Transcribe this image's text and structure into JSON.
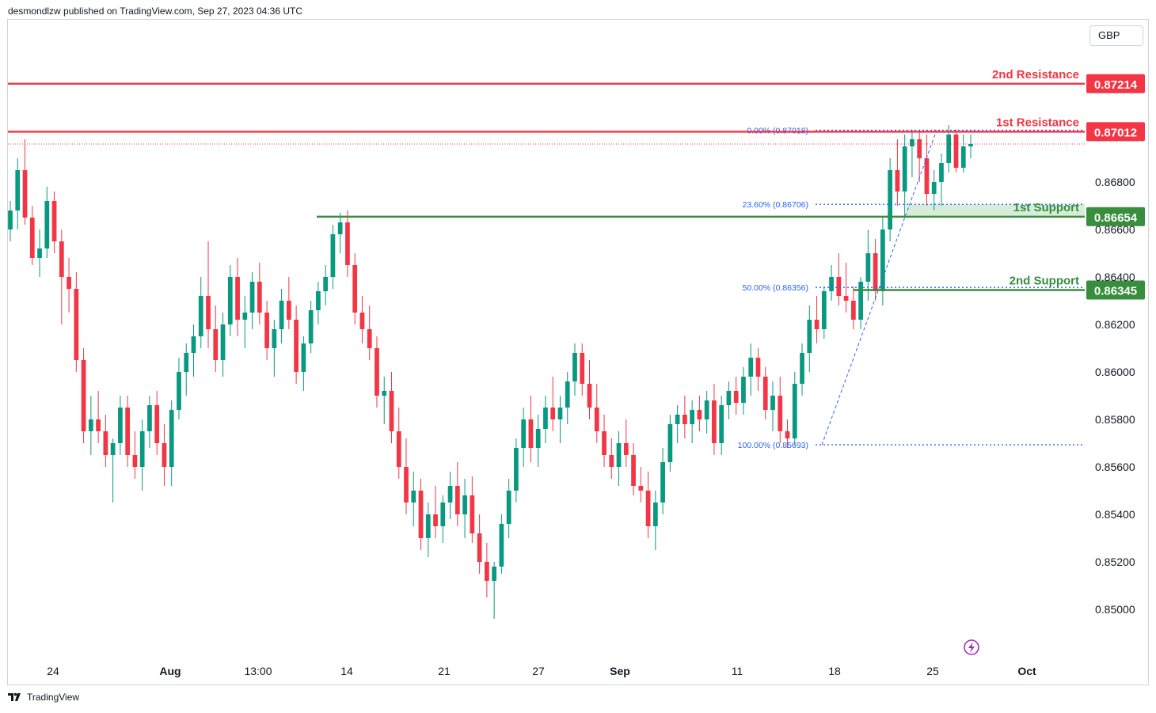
{
  "header": {
    "publisher": "desmondlzw published on TradingView.com, Sep 27, 2023 04:36 UTC"
  },
  "currency": "GBP",
  "footer": {
    "brand": "TradingView",
    "logo_icon": "tradingview-logo-icon"
  },
  "colors": {
    "up": "#089981",
    "down": "#f23645",
    "resistance": "#f23645",
    "support": "#388e3c",
    "fib": "#2962ff",
    "fib_text": "#2962ff",
    "purple": "#9c27b0",
    "support_zone": "#c8e6c9"
  },
  "chart_data": {
    "type": "candlestick",
    "symbol_currency": "GBP",
    "y_axis": {
      "ylim": [
        0.8492,
        0.8736
      ],
      "ticks": [
        "0.85000",
        "0.85200",
        "0.85400",
        "0.85600",
        "0.85800",
        "0.86000",
        "0.86200",
        "0.86400",
        "0.86600",
        "0.86800"
      ],
      "tick_values": [
        0.85,
        0.852,
        0.854,
        0.856,
        0.858,
        0.86,
        0.862,
        0.864,
        0.866,
        0.868
      ]
    },
    "x_axis": {
      "labels": [
        "24",
        "Aug",
        "13:00",
        "14",
        "21",
        "27",
        "Sep",
        "11",
        "18",
        "25",
        "Oct"
      ],
      "bold_labels": [
        "Aug",
        "Sep",
        "Oct"
      ]
    },
    "levels": [
      {
        "name": "2nd Resistance",
        "value": 0.87214,
        "label": "0.87214",
        "kind": "resistance"
      },
      {
        "name": "1st Resistance",
        "value": 0.87012,
        "label": "0.87012",
        "kind": "resistance"
      },
      {
        "name": "1st Support",
        "value": 0.86654,
        "label": "0.86654",
        "kind": "support"
      },
      {
        "name": "2nd Support",
        "value": 0.86345,
        "label": "0.86345",
        "kind": "support"
      }
    ],
    "fibonacci": [
      {
        "label": "0.00% (0.87018)",
        "value": 0.87018
      },
      {
        "label": "23.60% (0.86706)",
        "value": 0.86706
      },
      {
        "label": "50.00% (0.86356)",
        "value": 0.86356
      },
      {
        "label": "100.00% (0.85693)",
        "value": 0.85693
      }
    ],
    "ohlc": [
      [
        0.866,
        0.8672,
        0.8655,
        0.8668
      ],
      [
        0.8668,
        0.869,
        0.866,
        0.8685
      ],
      [
        0.8685,
        0.8698,
        0.8662,
        0.8665
      ],
      [
        0.8665,
        0.867,
        0.8645,
        0.8648
      ],
      [
        0.8648,
        0.866,
        0.864,
        0.8652
      ],
      [
        0.8652,
        0.8678,
        0.8648,
        0.8672
      ],
      [
        0.8672,
        0.8676,
        0.865,
        0.8655
      ],
      [
        0.8655,
        0.866,
        0.862,
        0.864
      ],
      [
        0.864,
        0.8648,
        0.8625,
        0.8635
      ],
      [
        0.8635,
        0.8642,
        0.86,
        0.8605
      ],
      [
        0.8605,
        0.861,
        0.857,
        0.8575
      ],
      [
        0.8575,
        0.859,
        0.8565,
        0.858
      ],
      [
        0.858,
        0.8592,
        0.857,
        0.8575
      ],
      [
        0.8575,
        0.8582,
        0.856,
        0.8565
      ],
      [
        0.8565,
        0.8572,
        0.8545,
        0.857
      ],
      [
        0.857,
        0.859,
        0.8565,
        0.8585
      ],
      [
        0.8585,
        0.859,
        0.856,
        0.8565
      ],
      [
        0.8565,
        0.8575,
        0.8555,
        0.856
      ],
      [
        0.856,
        0.858,
        0.855,
        0.8575
      ],
      [
        0.8575,
        0.859,
        0.8568,
        0.8586
      ],
      [
        0.8586,
        0.8592,
        0.8565,
        0.857
      ],
      [
        0.857,
        0.8578,
        0.8552,
        0.856
      ],
      [
        0.856,
        0.8588,
        0.8552,
        0.8584
      ],
      [
        0.8584,
        0.8606,
        0.858,
        0.86
      ],
      [
        0.86,
        0.8612,
        0.859,
        0.8608
      ],
      [
        0.8608,
        0.862,
        0.8598,
        0.8615
      ],
      [
        0.8615,
        0.864,
        0.861,
        0.8632
      ],
      [
        0.8632,
        0.8655,
        0.861,
        0.8618
      ],
      [
        0.8618,
        0.8628,
        0.86,
        0.8605
      ],
      [
        0.8605,
        0.8625,
        0.8598,
        0.862
      ],
      [
        0.862,
        0.8645,
        0.8615,
        0.864
      ],
      [
        0.864,
        0.8648,
        0.8615,
        0.8622
      ],
      [
        0.8622,
        0.8632,
        0.861,
        0.8625
      ],
      [
        0.8625,
        0.8642,
        0.8618,
        0.8638
      ],
      [
        0.8638,
        0.8646,
        0.862,
        0.8625
      ],
      [
        0.8625,
        0.863,
        0.8605,
        0.861
      ],
      [
        0.861,
        0.8622,
        0.8598,
        0.8618
      ],
      [
        0.8618,
        0.8635,
        0.8612,
        0.863
      ],
      [
        0.863,
        0.864,
        0.8618,
        0.8622
      ],
      [
        0.8622,
        0.8628,
        0.8595,
        0.86
      ],
      [
        0.86,
        0.8615,
        0.8592,
        0.8612
      ],
      [
        0.8612,
        0.863,
        0.8608,
        0.8626
      ],
      [
        0.8626,
        0.8638,
        0.862,
        0.8634
      ],
      [
        0.8634,
        0.8645,
        0.8628,
        0.864
      ],
      [
        0.864,
        0.8662,
        0.8635,
        0.8658
      ],
      [
        0.8658,
        0.8667,
        0.865,
        0.8663
      ],
      [
        0.8663,
        0.8668,
        0.864,
        0.8645
      ],
      [
        0.8645,
        0.865,
        0.862,
        0.8625
      ],
      [
        0.8625,
        0.8632,
        0.8612,
        0.8618
      ],
      [
        0.8618,
        0.8628,
        0.8605,
        0.861
      ],
      [
        0.861,
        0.8615,
        0.8585,
        0.859
      ],
      [
        0.859,
        0.8598,
        0.8578,
        0.8592
      ],
      [
        0.8592,
        0.86,
        0.857,
        0.8575
      ],
      [
        0.8575,
        0.8585,
        0.8555,
        0.856
      ],
      [
        0.856,
        0.8572,
        0.854,
        0.8545
      ],
      [
        0.8545,
        0.8558,
        0.8535,
        0.855
      ],
      [
        0.855,
        0.8555,
        0.8525,
        0.853
      ],
      [
        0.853,
        0.8545,
        0.8522,
        0.854
      ],
      [
        0.854,
        0.8552,
        0.853,
        0.8535
      ],
      [
        0.8535,
        0.8548,
        0.8528,
        0.8545
      ],
      [
        0.8545,
        0.8558,
        0.8538,
        0.8552
      ],
      [
        0.8552,
        0.8562,
        0.8535,
        0.854
      ],
      [
        0.854,
        0.8555,
        0.853,
        0.8548
      ],
      [
        0.8548,
        0.8556,
        0.8528,
        0.8532
      ],
      [
        0.8532,
        0.854,
        0.8515,
        0.852
      ],
      [
        0.852,
        0.8528,
        0.8505,
        0.8512
      ],
      [
        0.8512,
        0.852,
        0.8496,
        0.8518
      ],
      [
        0.8518,
        0.854,
        0.8515,
        0.8536
      ],
      [
        0.8536,
        0.8555,
        0.853,
        0.855
      ],
      [
        0.855,
        0.8572,
        0.8545,
        0.8568
      ],
      [
        0.8568,
        0.8585,
        0.856,
        0.858
      ],
      [
        0.858,
        0.859,
        0.8562,
        0.8568
      ],
      [
        0.8568,
        0.8582,
        0.856,
        0.8576
      ],
      [
        0.8576,
        0.859,
        0.857,
        0.8585
      ],
      [
        0.8585,
        0.8598,
        0.8575,
        0.858
      ],
      [
        0.858,
        0.859,
        0.857,
        0.8585
      ],
      [
        0.8585,
        0.86,
        0.8578,
        0.8596
      ],
      [
        0.8596,
        0.8612,
        0.859,
        0.8608
      ],
      [
        0.8608,
        0.8612,
        0.859,
        0.8595
      ],
      [
        0.8595,
        0.8605,
        0.858,
        0.8585
      ],
      [
        0.8585,
        0.8595,
        0.857,
        0.8575
      ],
      [
        0.8575,
        0.8582,
        0.856,
        0.8565
      ],
      [
        0.8565,
        0.8572,
        0.8555,
        0.856
      ],
      [
        0.856,
        0.8575,
        0.8552,
        0.857
      ],
      [
        0.857,
        0.858,
        0.856,
        0.8565
      ],
      [
        0.8565,
        0.857,
        0.8548,
        0.8552
      ],
      [
        0.8552,
        0.856,
        0.8545,
        0.855
      ],
      [
        0.855,
        0.8558,
        0.853,
        0.8535
      ],
      [
        0.8535,
        0.855,
        0.8525,
        0.8545
      ],
      [
        0.8545,
        0.8568,
        0.854,
        0.8562
      ],
      [
        0.8562,
        0.8582,
        0.8558,
        0.8578
      ],
      [
        0.8578,
        0.8586,
        0.857,
        0.8582
      ],
      [
        0.8582,
        0.859,
        0.8572,
        0.8578
      ],
      [
        0.8578,
        0.8588,
        0.857,
        0.8584
      ],
      [
        0.8584,
        0.859,
        0.8575,
        0.858
      ],
      [
        0.858,
        0.8592,
        0.8574,
        0.8588
      ],
      [
        0.8588,
        0.8595,
        0.8565,
        0.857
      ],
      [
        0.857,
        0.859,
        0.8565,
        0.8586
      ],
      [
        0.8586,
        0.8596,
        0.858,
        0.8592
      ],
      [
        0.8592,
        0.8598,
        0.8582,
        0.8587
      ],
      [
        0.8587,
        0.8602,
        0.8582,
        0.8598
      ],
      [
        0.8598,
        0.8612,
        0.859,
        0.8606
      ],
      [
        0.8606,
        0.861,
        0.8592,
        0.8598
      ],
      [
        0.8598,
        0.8602,
        0.858,
        0.8584
      ],
      [
        0.8584,
        0.8596,
        0.8575,
        0.859
      ],
      [
        0.859,
        0.8598,
        0.857,
        0.8575
      ],
      [
        0.8575,
        0.858,
        0.8568,
        0.8572
      ],
      [
        0.8572,
        0.86,
        0.8569,
        0.8595
      ],
      [
        0.8595,
        0.8612,
        0.859,
        0.8608
      ],
      [
        0.8608,
        0.8628,
        0.86,
        0.8622
      ],
      [
        0.8622,
        0.8632,
        0.8612,
        0.8618
      ],
      [
        0.8618,
        0.8636,
        0.8614,
        0.8634
      ],
      [
        0.8634,
        0.8645,
        0.863,
        0.864
      ],
      [
        0.864,
        0.865,
        0.8628,
        0.8632
      ],
      [
        0.8632,
        0.8646,
        0.8625,
        0.863
      ],
      [
        0.863,
        0.8636,
        0.8618,
        0.8622
      ],
      [
        0.8622,
        0.864,
        0.8618,
        0.8638
      ],
      [
        0.8638,
        0.866,
        0.863,
        0.865
      ],
      [
        0.865,
        0.8656,
        0.863,
        0.8634
      ],
      [
        0.8634,
        0.8665,
        0.8628,
        0.866
      ],
      [
        0.866,
        0.869,
        0.8655,
        0.8685
      ],
      [
        0.8685,
        0.8698,
        0.867,
        0.8676
      ],
      [
        0.8676,
        0.87,
        0.8665,
        0.8695
      ],
      [
        0.8695,
        0.8702,
        0.8682,
        0.8698
      ],
      [
        0.8698,
        0.8702,
        0.868,
        0.869
      ],
      [
        0.869,
        0.87,
        0.867,
        0.8675
      ],
      [
        0.8675,
        0.8685,
        0.8668,
        0.868
      ],
      [
        0.868,
        0.8692,
        0.867,
        0.8688
      ],
      [
        0.8688,
        0.8704,
        0.8684,
        0.87
      ],
      [
        0.87,
        0.8702,
        0.8684,
        0.8686
      ],
      [
        0.8686,
        0.87,
        0.8684,
        0.8695
      ],
      [
        0.8695,
        0.87,
        0.869,
        0.8696
      ]
    ]
  }
}
